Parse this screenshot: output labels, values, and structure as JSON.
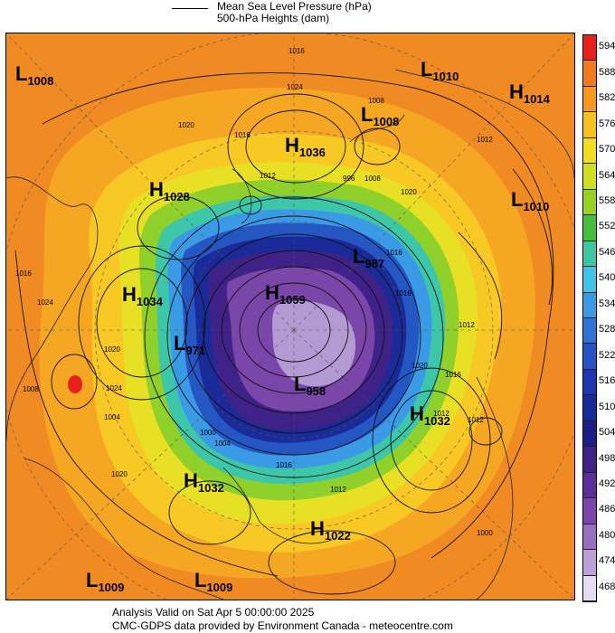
{
  "header": {
    "line1": "Mean Sea Level Pressure (hPa)",
    "line2": "500-hPa Heights (dam)"
  },
  "colorbar": {
    "labels": [
      "594",
      "588",
      "582",
      "576",
      "570",
      "564",
      "558",
      "552",
      "546",
      "540",
      "534",
      "528",
      "522",
      "516",
      "510",
      "504",
      "498",
      "492",
      "486",
      "480",
      "474",
      "468"
    ],
    "colors": [
      "#e8201c",
      "#f07a1e",
      "#f59a1e",
      "#f8c21e",
      "#f4dc1e",
      "#cfe01e",
      "#9ad223",
      "#46bd3a",
      "#3ec6a2",
      "#3ec4e6",
      "#3a9ae6",
      "#2f72d8",
      "#2652c4",
      "#1f36b0",
      "#182a98",
      "#1a1e86",
      "#3e2288",
      "#5c2e98",
      "#7a46aa",
      "#9a6ec0",
      "#bca0d6",
      "#e6dcf0"
    ]
  },
  "pressure_centers": [
    {
      "type": "L",
      "value": "1008"
    },
    {
      "type": "L",
      "value": "1010"
    },
    {
      "type": "H",
      "value": "1014"
    },
    {
      "type": "L",
      "value": "1008"
    },
    {
      "type": "H",
      "value": "1036"
    },
    {
      "type": "H",
      "value": "1028"
    },
    {
      "type": "L",
      "value": "1010"
    },
    {
      "type": "L",
      "value": "987"
    },
    {
      "type": "H",
      "value": "1034"
    },
    {
      "type": "H",
      "value": "1059"
    },
    {
      "type": "L",
      "value": "971"
    },
    {
      "type": "L",
      "value": "958"
    },
    {
      "type": "H",
      "value": "1032"
    },
    {
      "type": "H",
      "value": "1032"
    },
    {
      "type": "H",
      "value": "1022"
    },
    {
      "type": "L",
      "value": "1009"
    },
    {
      "type": "L",
      "value": "1009"
    }
  ],
  "isobar_labels": [
    "1016",
    "1024",
    "1020",
    "1008",
    "1012",
    "1020",
    "1016",
    "1012",
    "1016",
    "1024",
    "1020",
    "1024",
    "1008",
    "1004",
    "1000",
    "996",
    "1016",
    "1016",
    "1020",
    "1012",
    "1016",
    "1012",
    "1008",
    "1012",
    "1016",
    "1020",
    "1004",
    "1012",
    "1000"
  ],
  "footer": {
    "line1": "Analysis Valid on Sat Apr  5 00:00:00 2025",
    "line2": "CMC-GDPS data provided by Environment Canada - meteocentre.com"
  }
}
